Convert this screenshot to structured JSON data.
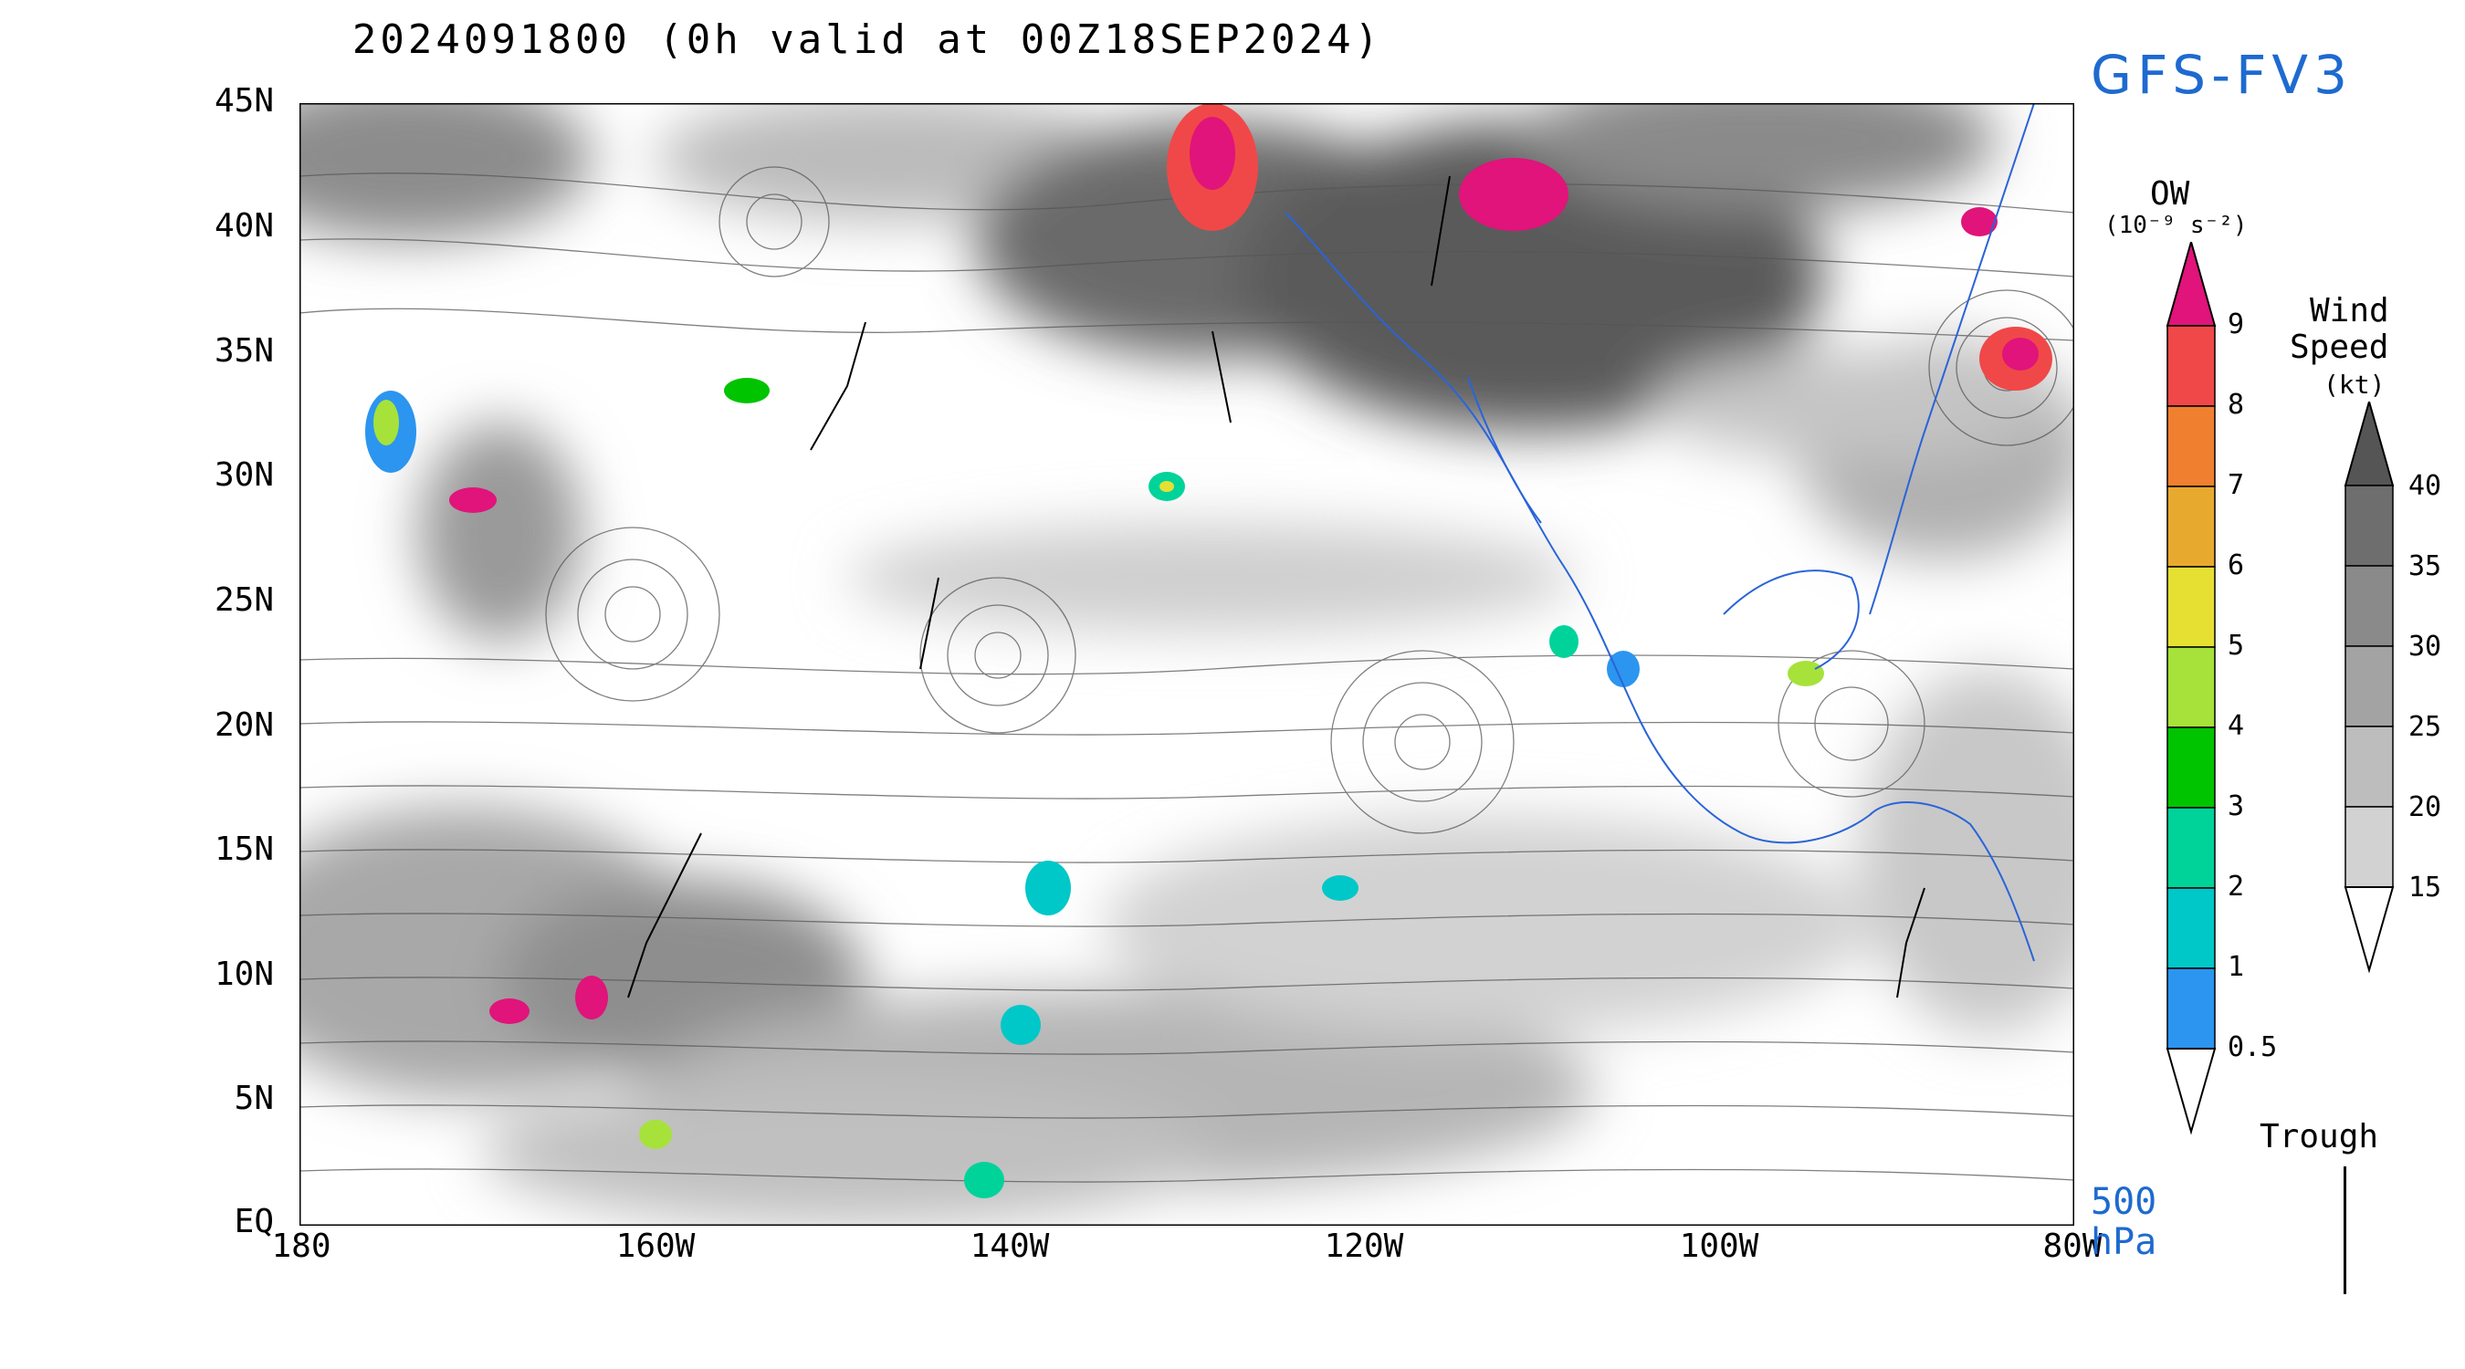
{
  "title": "2024091800 (0h valid at 00Z18SEP2024)",
  "model": "GFS-FV3",
  "level": {
    "value": "500",
    "unit": "hPa"
  },
  "map": {
    "lat_labels": [
      "45N",
      "40N",
      "35N",
      "30N",
      "25N",
      "20N",
      "15N",
      "10N",
      "5N",
      "EQ"
    ],
    "lon_labels": [
      "180",
      "160W",
      "140W",
      "120W",
      "100W",
      "80W"
    ]
  },
  "colorbars": {
    "ow": {
      "title": "OW",
      "units": "(10⁻⁹ s⁻²)",
      "levels": [
        "0.5",
        "1",
        "2",
        "3",
        "4",
        "5",
        "6",
        "7",
        "8",
        "9"
      ],
      "colors": [
        "#2b95f0",
        "#00c8c8",
        "#00d39a",
        "#00c400",
        "#a6e23a",
        "#e6e032",
        "#e8aa2e",
        "#f08030",
        "#f04848",
        "#e0147a"
      ]
    },
    "wind": {
      "title_line1": "Wind",
      "title_line2": "Speed",
      "units": "(kt)",
      "levels": [
        "15",
        "20",
        "25",
        "30",
        "35",
        "40"
      ],
      "colors": [
        "#e6e6e6",
        "#d2d2d2",
        "#bdbdbd",
        "#a3a3a3",
        "#8a8a8a",
        "#6e6e6e"
      ]
    }
  },
  "legend": {
    "trough_label": "Trough"
  },
  "colors": {
    "accent": "#1e6ad0",
    "coast": "#2a64d8"
  }
}
